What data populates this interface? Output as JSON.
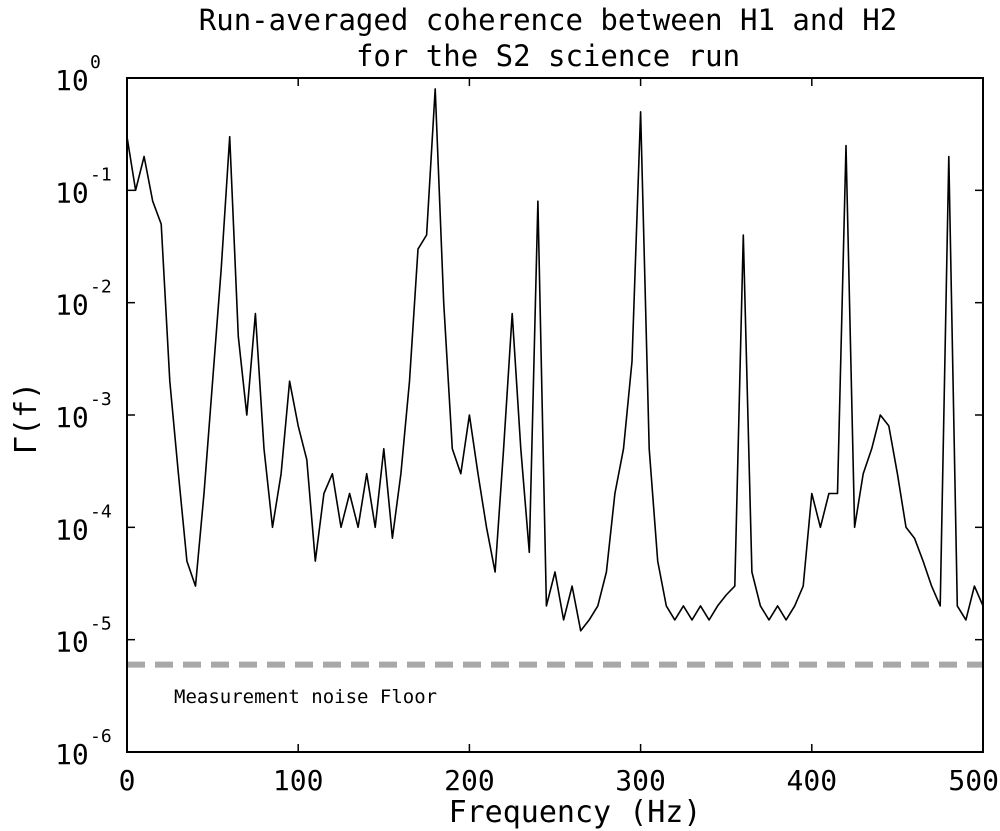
{
  "chart_data": {
    "type": "line",
    "title": [
      "Run-averaged coherence between H1 and H2",
      "for the S2 science run"
    ],
    "xlabel": "Frequency (Hz)",
    "ylabel": "Γ(f)",
    "xlim": [
      0,
      500
    ],
    "ylim": [
      1e-06,
      1
    ],
    "yscale": "log",
    "grid": false,
    "x_ticks": [
      0,
      100,
      200,
      300,
      400,
      500
    ],
    "x_tick_labels": [
      "0",
      "100",
      "200",
      "300",
      "400",
      "500"
    ],
    "y_ticks": [
      1e-06,
      1e-05,
      0.0001,
      0.001,
      0.01,
      0.1,
      1
    ],
    "y_tick_labels": [
      {
        "base": "10",
        "exp": "-6"
      },
      {
        "base": "10",
        "exp": "-5"
      },
      {
        "base": "10",
        "exp": "-4"
      },
      {
        "base": "10",
        "exp": "-3"
      },
      {
        "base": "10",
        "exp": "-2"
      },
      {
        "base": "10",
        "exp": "-1"
      },
      {
        "base": "10",
        "exp": "0"
      }
    ],
    "series": [
      {
        "color": "#000000",
        "x": [
          0,
          5,
          10,
          15,
          20,
          25,
          30,
          35,
          40,
          45,
          50,
          55,
          60,
          65,
          70,
          75,
          80,
          85,
          90,
          95,
          100,
          105,
          110,
          115,
          120,
          125,
          130,
          135,
          140,
          145,
          150,
          155,
          160,
          165,
          170,
          175,
          180,
          185,
          190,
          195,
          200,
          205,
          210,
          215,
          220,
          225,
          230,
          235,
          240,
          245,
          250,
          255,
          260,
          265,
          270,
          275,
          280,
          285,
          290,
          295,
          300,
          305,
          310,
          315,
          320,
          325,
          330,
          335,
          340,
          345,
          350,
          355,
          360,
          365,
          370,
          375,
          380,
          385,
          390,
          395,
          400,
          405,
          410,
          415,
          420,
          425,
          430,
          435,
          440,
          445,
          450,
          455,
          460,
          465,
          470,
          475,
          480,
          485,
          490,
          495,
          500
        ],
        "y": [
          0.3,
          0.1,
          0.2,
          0.08,
          0.05,
          0.002,
          0.0003,
          5e-05,
          3e-05,
          0.0002,
          0.002,
          0.02,
          0.3,
          0.005,
          0.001,
          0.008,
          0.0005,
          0.0001,
          0.0003,
          0.002,
          0.0008,
          0.0004,
          5e-05,
          0.0002,
          0.0003,
          0.0001,
          0.0002,
          0.0001,
          0.0003,
          0.0001,
          0.0005,
          8e-05,
          0.0003,
          0.002,
          0.03,
          0.04,
          0.8,
          0.01,
          0.0005,
          0.0003,
          0.001,
          0.0003,
          0.0001,
          4e-05,
          0.0005,
          0.008,
          0.0005,
          6e-05,
          0.08,
          2e-05,
          4e-05,
          1.5e-05,
          3e-05,
          1.2e-05,
          1.5e-05,
          2e-05,
          4e-05,
          0.0002,
          0.0005,
          0.003,
          0.5,
          0.0005,
          5e-05,
          2e-05,
          1.5e-05,
          2e-05,
          1.5e-05,
          2e-05,
          1.5e-05,
          2e-05,
          2.5e-05,
          3e-05,
          0.04,
          4e-05,
          2e-05,
          1.5e-05,
          2e-05,
          1.5e-05,
          2e-05,
          3e-05,
          0.0002,
          0.0001,
          0.0002,
          0.0002,
          0.25,
          0.0001,
          0.0003,
          0.0005,
          0.001,
          0.0008,
          0.0003,
          0.0001,
          8e-05,
          5e-05,
          3e-05,
          2e-05,
          0.2,
          2e-05,
          1.5e-05,
          3e-05,
          2e-05
        ]
      }
    ],
    "noise_floor": {
      "value": 6e-06,
      "color": "#a8a8a8",
      "style": "dashed",
      "label": "Measurement noise Floor"
    }
  }
}
